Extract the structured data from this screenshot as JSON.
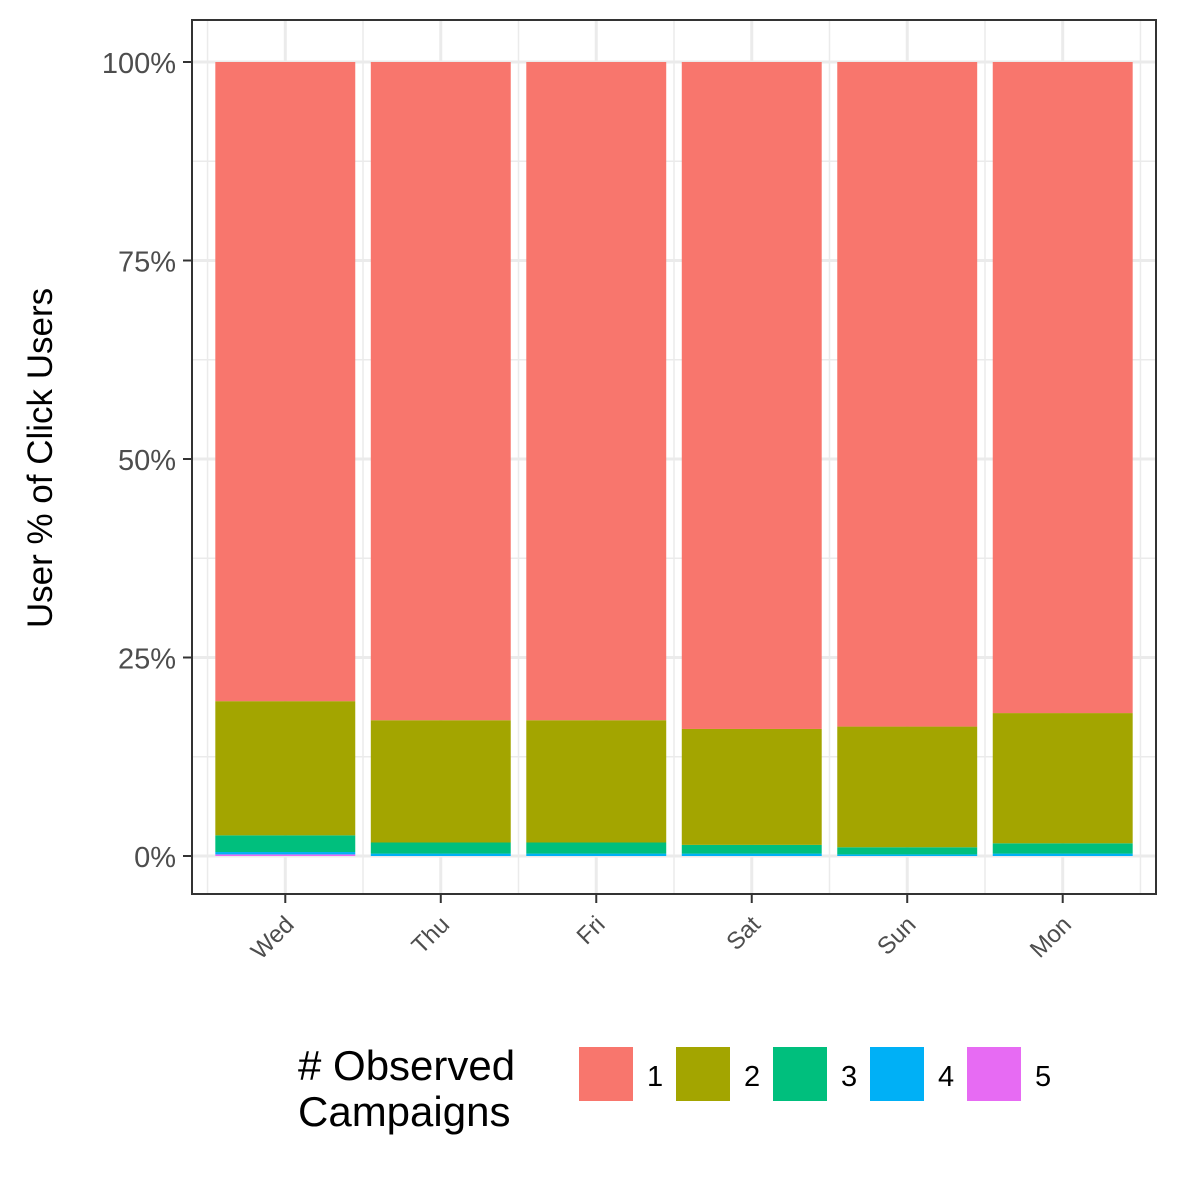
{
  "chart_data": {
    "type": "bar",
    "stacked": true,
    "percent": true,
    "title": "",
    "xlabel": "",
    "ylabel": "User % of Click Users",
    "ylim": [
      0,
      100
    ],
    "yticks": [
      "0%",
      "25%",
      "50%",
      "75%",
      "100%"
    ],
    "grid": true,
    "legend_position": "bottom",
    "legend_title": "# Observed Campaigns",
    "legend_title_lines": [
      "# Observed",
      "Campaigns"
    ],
    "categories": [
      "Wed",
      "Thu",
      "Fri",
      "Sat",
      "Sun",
      "Mon"
    ],
    "series": [
      {
        "name": "1",
        "color": "#F8766D",
        "values": [
          80.5,
          82.9,
          82.9,
          84.0,
          83.7,
          82.0
        ]
      },
      {
        "name": "2",
        "color": "#A3A500",
        "values": [
          16.9,
          15.4,
          15.4,
          14.6,
          15.2,
          16.4
        ]
      },
      {
        "name": "3",
        "color": "#00BF7D",
        "values": [
          2.1,
          1.4,
          1.4,
          1.1,
          0.9,
          1.3
        ]
      },
      {
        "name": "4",
        "color": "#00B0F6",
        "values": [
          0.3,
          0.3,
          0.3,
          0.3,
          0.2,
          0.3
        ]
      },
      {
        "name": "5",
        "color": "#E76BF3",
        "values": [
          0.2,
          0.0,
          0.0,
          0.0,
          0.0,
          0.0
        ]
      }
    ]
  }
}
